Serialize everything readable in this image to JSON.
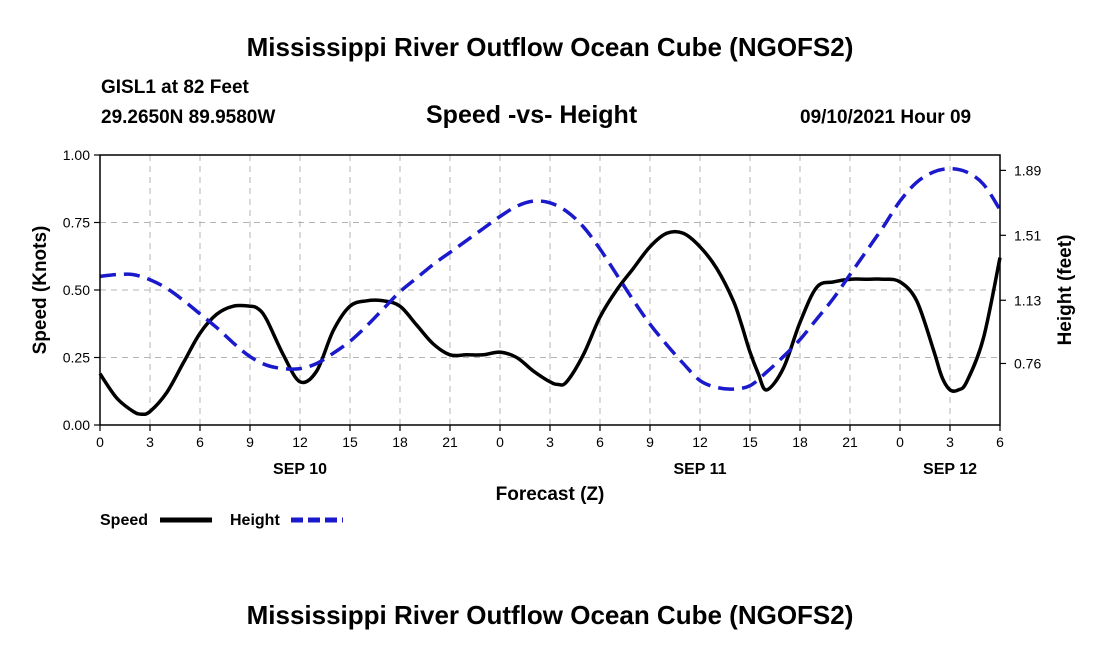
{
  "header": {
    "title_top": "Mississippi River Outflow Ocean Cube (NGOFS2)",
    "station": "GISL1 at 82 Feet",
    "coords": "29.2650N  89.9580W",
    "plot_title": "Speed -vs- Height",
    "datetime": "09/10/2021 Hour 09",
    "title_bottom": "Mississippi River Outflow Ocean Cube (NGOFS2)"
  },
  "legend": {
    "speed_label": "Speed",
    "height_label": "Height"
  },
  "colors": {
    "speed": "#000000",
    "height": "#1a1acc",
    "grid": "#b4b4b4"
  },
  "chart_data": {
    "type": "line",
    "title": "Speed -vs- Height",
    "xlabel": "Forecast (Z)",
    "ylabel": "Speed (Knots)",
    "y2label": "Height (feet)",
    "x_range_hours": [
      0,
      54
    ],
    "x_ticks": [
      0,
      3,
      6,
      9,
      12,
      15,
      18,
      21,
      24,
      27,
      30,
      33,
      36,
      39,
      42,
      45,
      48,
      51,
      54
    ],
    "x_tick_labels": [
      "0",
      "3",
      "6",
      "9",
      "12",
      "15",
      "18",
      "21",
      "0",
      "3",
      "6",
      "9",
      "12",
      "15",
      "18",
      "21",
      "0",
      "3",
      "6"
    ],
    "day_labels": [
      {
        "label": "SEP 10",
        "hour": 12
      },
      {
        "label": "SEP 11",
        "hour": 36
      },
      {
        "label": "SEP 12",
        "hour": 51
      }
    ],
    "ylim": [
      0,
      1
    ],
    "y_ticks": [
      0,
      0.25,
      0.5,
      0.75,
      1.0
    ],
    "y_tick_labels": [
      "0.00",
      "0.25",
      "0.50",
      "0.75",
      "1.00"
    ],
    "y2lim": [
      0.4,
      1.98
    ],
    "y2_ticks": [
      0.76,
      1.13,
      1.51,
      1.89
    ],
    "y2_tick_labels": [
      "0.76",
      "1.13",
      "1.51",
      "1.89"
    ],
    "grid": true,
    "series": [
      {
        "name": "Speed",
        "axis": "left",
        "style": "solid",
        "x": [
          0,
          1,
          2,
          2.5,
          3,
          4,
          5,
          6,
          7,
          8,
          9,
          9.5,
          10,
          11,
          12,
          13,
          14,
          15,
          16,
          17,
          18,
          19,
          20,
          21,
          22,
          23,
          24,
          25,
          26,
          27,
          27.5,
          28,
          29,
          30,
          31,
          32,
          33,
          34,
          35,
          36,
          37,
          38,
          38.5,
          39,
          39.5,
          40,
          41,
          42,
          43,
          44,
          45,
          46,
          47,
          48,
          49,
          50,
          50.5,
          51,
          51.5,
          52,
          53,
          54
        ],
        "values": [
          0.19,
          0.1,
          0.05,
          0.04,
          0.05,
          0.12,
          0.23,
          0.34,
          0.41,
          0.44,
          0.44,
          0.43,
          0.39,
          0.26,
          0.16,
          0.2,
          0.35,
          0.44,
          0.46,
          0.46,
          0.44,
          0.37,
          0.3,
          0.26,
          0.26,
          0.26,
          0.27,
          0.25,
          0.2,
          0.16,
          0.15,
          0.16,
          0.26,
          0.4,
          0.5,
          0.58,
          0.66,
          0.71,
          0.71,
          0.66,
          0.58,
          0.46,
          0.37,
          0.27,
          0.19,
          0.13,
          0.21,
          0.38,
          0.51,
          0.53,
          0.54,
          0.54,
          0.54,
          0.53,
          0.46,
          0.28,
          0.18,
          0.13,
          0.13,
          0.16,
          0.32,
          0.62
        ]
      },
      {
        "name": "Height",
        "axis": "right",
        "style": "dashed",
        "x": [
          0,
          1,
          2,
          3,
          4,
          5,
          6,
          7,
          8,
          9,
          10,
          11,
          12,
          13,
          14,
          15,
          16,
          17,
          18,
          19,
          20,
          21,
          22,
          23,
          24,
          25,
          26,
          27,
          28,
          29,
          30,
          31,
          32,
          33,
          34,
          35,
          36,
          37,
          38,
          39,
          40,
          41,
          42,
          43,
          44,
          45,
          46,
          47,
          48,
          49,
          50,
          51,
          52,
          53,
          54
        ],
        "values": [
          1.27,
          1.28,
          1.28,
          1.25,
          1.2,
          1.13,
          1.05,
          0.97,
          0.88,
          0.8,
          0.75,
          0.73,
          0.73,
          0.76,
          0.82,
          0.89,
          0.98,
          1.08,
          1.18,
          1.26,
          1.34,
          1.41,
          1.48,
          1.55,
          1.62,
          1.68,
          1.71,
          1.7,
          1.65,
          1.56,
          1.43,
          1.28,
          1.13,
          0.99,
          0.87,
          0.76,
          0.66,
          0.62,
          0.61,
          0.63,
          0.71,
          0.8,
          0.9,
          1.02,
          1.14,
          1.28,
          1.42,
          1.56,
          1.71,
          1.82,
          1.88,
          1.9,
          1.88,
          1.81,
          1.66
        ]
      }
    ]
  }
}
